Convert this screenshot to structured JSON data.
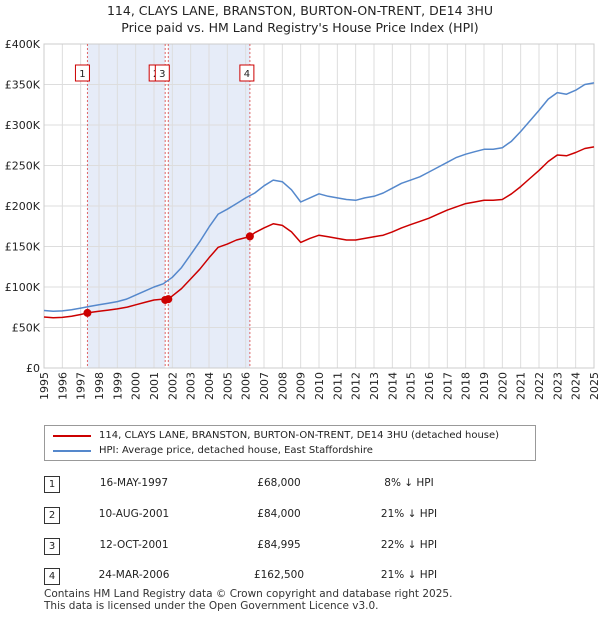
{
  "title_line1": "114, CLAYS LANE, BRANSTON, BURTON-ON-TRENT, DE14 3HU",
  "title_line2": "Price paid vs. HM Land Registry's House Price Index (HPI)",
  "legend": {
    "property": "114, CLAYS LANE, BRANSTON, BURTON-ON-TRENT, DE14 3HU (detached house)",
    "hpi": "HPI: Average price, detached house, East Staffordshire"
  },
  "colors": {
    "property": "#cc0000",
    "hpi": "#5588cc",
    "band": "#e6ecf8",
    "grid": "#dddddd"
  },
  "transactions": [
    {
      "num": "1",
      "date": "16-MAY-1997",
      "price": "£68,000",
      "hpi": "8% ↓ HPI"
    },
    {
      "num": "2",
      "date": "10-AUG-2001",
      "price": "£84,000",
      "hpi": "21% ↓ HPI"
    },
    {
      "num": "3",
      "date": "12-OCT-2001",
      "price": "£84,995",
      "hpi": "22% ↓ HPI"
    },
    {
      "num": "4",
      "date": "24-MAR-2006",
      "price": "£162,500",
      "hpi": "21% ↓ HPI"
    }
  ],
  "footer_line1": "Contains HM Land Registry data © Crown copyright and database right 2025.",
  "footer_line2": "This data is licensed under the Open Government Licence v3.0.",
  "chart_data": {
    "type": "line",
    "title": "114, CLAYS LANE, BRANSTON, BURTON-ON-TRENT, DE14 3HU — Price paid vs. HM Land Registry's House Price Index (HPI)",
    "xlabel": "",
    "ylabel": "",
    "xlim": [
      1995,
      2025
    ],
    "ylim": [
      0,
      400000
    ],
    "x_ticks": [
      1995,
      1996,
      1997,
      1998,
      1999,
      2000,
      2001,
      2002,
      2003,
      2004,
      2005,
      2006,
      2007,
      2008,
      2009,
      2010,
      2011,
      2012,
      2013,
      2014,
      2015,
      2016,
      2017,
      2018,
      2019,
      2020,
      2021,
      2022,
      2023,
      2024,
      2025
    ],
    "y_ticks": [
      0,
      50000,
      100000,
      150000,
      200000,
      250000,
      300000,
      350000,
      400000
    ],
    "y_tick_labels": [
      "£0",
      "£50K",
      "£100K",
      "£150K",
      "£200K",
      "£250K",
      "£300K",
      "£350K",
      "£400K"
    ],
    "grid": true,
    "shaded_ranges": [
      [
        1997.37,
        2001.61
      ],
      [
        2001.78,
        2006.23
      ]
    ],
    "markers": [
      {
        "label": "1",
        "x": 1997.37,
        "y": 68000
      },
      {
        "label": "2",
        "x": 2001.61,
        "y": 84000
      },
      {
        "label": "3",
        "x": 2001.78,
        "y": 84995
      },
      {
        "label": "4",
        "x": 2006.23,
        "y": 162500
      }
    ],
    "series": [
      {
        "name": "HPI: Average price, detached house, East Staffordshire",
        "color": "#5588cc",
        "x": [
          1995,
          1995.5,
          1996,
          1996.5,
          1997,
          1997.5,
          1998,
          1998.5,
          1999,
          1999.5,
          2000,
          2000.5,
          2001,
          2001.5,
          2002,
          2002.5,
          2003,
          2003.5,
          2004,
          2004.5,
          2005,
          2005.5,
          2006,
          2006.5,
          2007,
          2007.5,
          2008,
          2008.5,
          2009,
          2009.5,
          2010,
          2010.5,
          2011,
          2011.5,
          2012,
          2012.5,
          2013,
          2013.5,
          2014,
          2014.5,
          2015,
          2015.5,
          2016,
          2016.5,
          2017,
          2017.5,
          2018,
          2018.5,
          2019,
          2019.5,
          2020,
          2020.5,
          2021,
          2021.5,
          2022,
          2022.5,
          2023,
          2023.5,
          2024,
          2024.5,
          2025
        ],
        "y": [
          71000,
          70000,
          70500,
          72000,
          74000,
          76000,
          78000,
          80000,
          82000,
          85000,
          90000,
          95000,
          100000,
          104000,
          112000,
          124000,
          140000,
          156000,
          174000,
          190000,
          196000,
          203000,
          210000,
          216000,
          225000,
          232000,
          230000,
          220000,
          205000,
          210000,
          215000,
          212000,
          210000,
          208000,
          207000,
          210000,
          212000,
          216000,
          222000,
          228000,
          232000,
          236000,
          242000,
          248000,
          254000,
          260000,
          264000,
          267000,
          270000,
          270000,
          272000,
          280000,
          292000,
          305000,
          318000,
          332000,
          340000,
          338000,
          343000,
          350000,
          352000
        ]
      },
      {
        "name": "114, CLAYS LANE, BRANSTON, BURTON-ON-TRENT, DE14 3HU (detached house)",
        "color": "#cc0000",
        "x": [
          1995,
          1995.5,
          1996,
          1996.5,
          1997,
          1997.37,
          1997.5,
          1998,
          1998.5,
          1999,
          1999.5,
          2000,
          2000.5,
          2001,
          2001.5,
          2001.61,
          2001.78,
          2002,
          2002.5,
          2003,
          2003.5,
          2004,
          2004.5,
          2005,
          2005.5,
          2006,
          2006.23,
          2006.5,
          2007,
          2007.5,
          2008,
          2008.5,
          2009,
          2009.5,
          2010,
          2010.5,
          2011,
          2011.5,
          2012,
          2012.5,
          2013,
          2013.5,
          2014,
          2014.5,
          2015,
          2015.5,
          2016,
          2016.5,
          2017,
          2017.5,
          2018,
          2018.5,
          2019,
          2019.5,
          2020,
          2020.5,
          2021,
          2021.5,
          2022,
          2022.5,
          2023,
          2023.5,
          2024,
          2024.5,
          2025
        ],
        "y": [
          63000,
          62000,
          62500,
          64000,
          66000,
          68000,
          68500,
          70000,
          71500,
          73000,
          75000,
          78000,
          81000,
          84000,
          85000,
          84000,
          84995,
          89000,
          98000,
          110000,
          122000,
          136000,
          149000,
          153000,
          158000,
          161000,
          162500,
          167000,
          173000,
          178000,
          176000,
          168000,
          155000,
          160000,
          164000,
          162000,
          160000,
          158000,
          158000,
          160000,
          162000,
          164000,
          168000,
          173000,
          177000,
          181000,
          185000,
          190000,
          195000,
          199000,
          203000,
          205000,
          207000,
          207000,
          208000,
          215000,
          224000,
          234000,
          244000,
          255000,
          263000,
          262000,
          266000,
          271000,
          273000
        ]
      }
    ]
  }
}
